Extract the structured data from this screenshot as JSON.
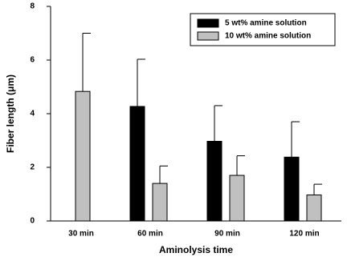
{
  "chart_data": {
    "type": "bar",
    "x_label": "Aminolysis time",
    "y_label": "Fiber length (μm)",
    "categories": [
      "30 min",
      "60 min",
      "90 min",
      "120 min"
    ],
    "series": [
      {
        "name": "5 wt% amine solution",
        "color": "#000000",
        "values": [
          null,
          4.27,
          2.97,
          2.38
        ],
        "errors": [
          null,
          1.76,
          1.33,
          1.32
        ]
      },
      {
        "name": "10 wt% amine solution",
        "color": "#c0c0c0",
        "values": [
          4.83,
          1.4,
          1.7,
          0.97
        ],
        "errors": [
          2.17,
          0.65,
          0.73,
          0.4
        ]
      }
    ],
    "ylim": [
      0,
      8
    ],
    "yticks": [
      0,
      2,
      4,
      6,
      8
    ],
    "legend": "upper right"
  }
}
